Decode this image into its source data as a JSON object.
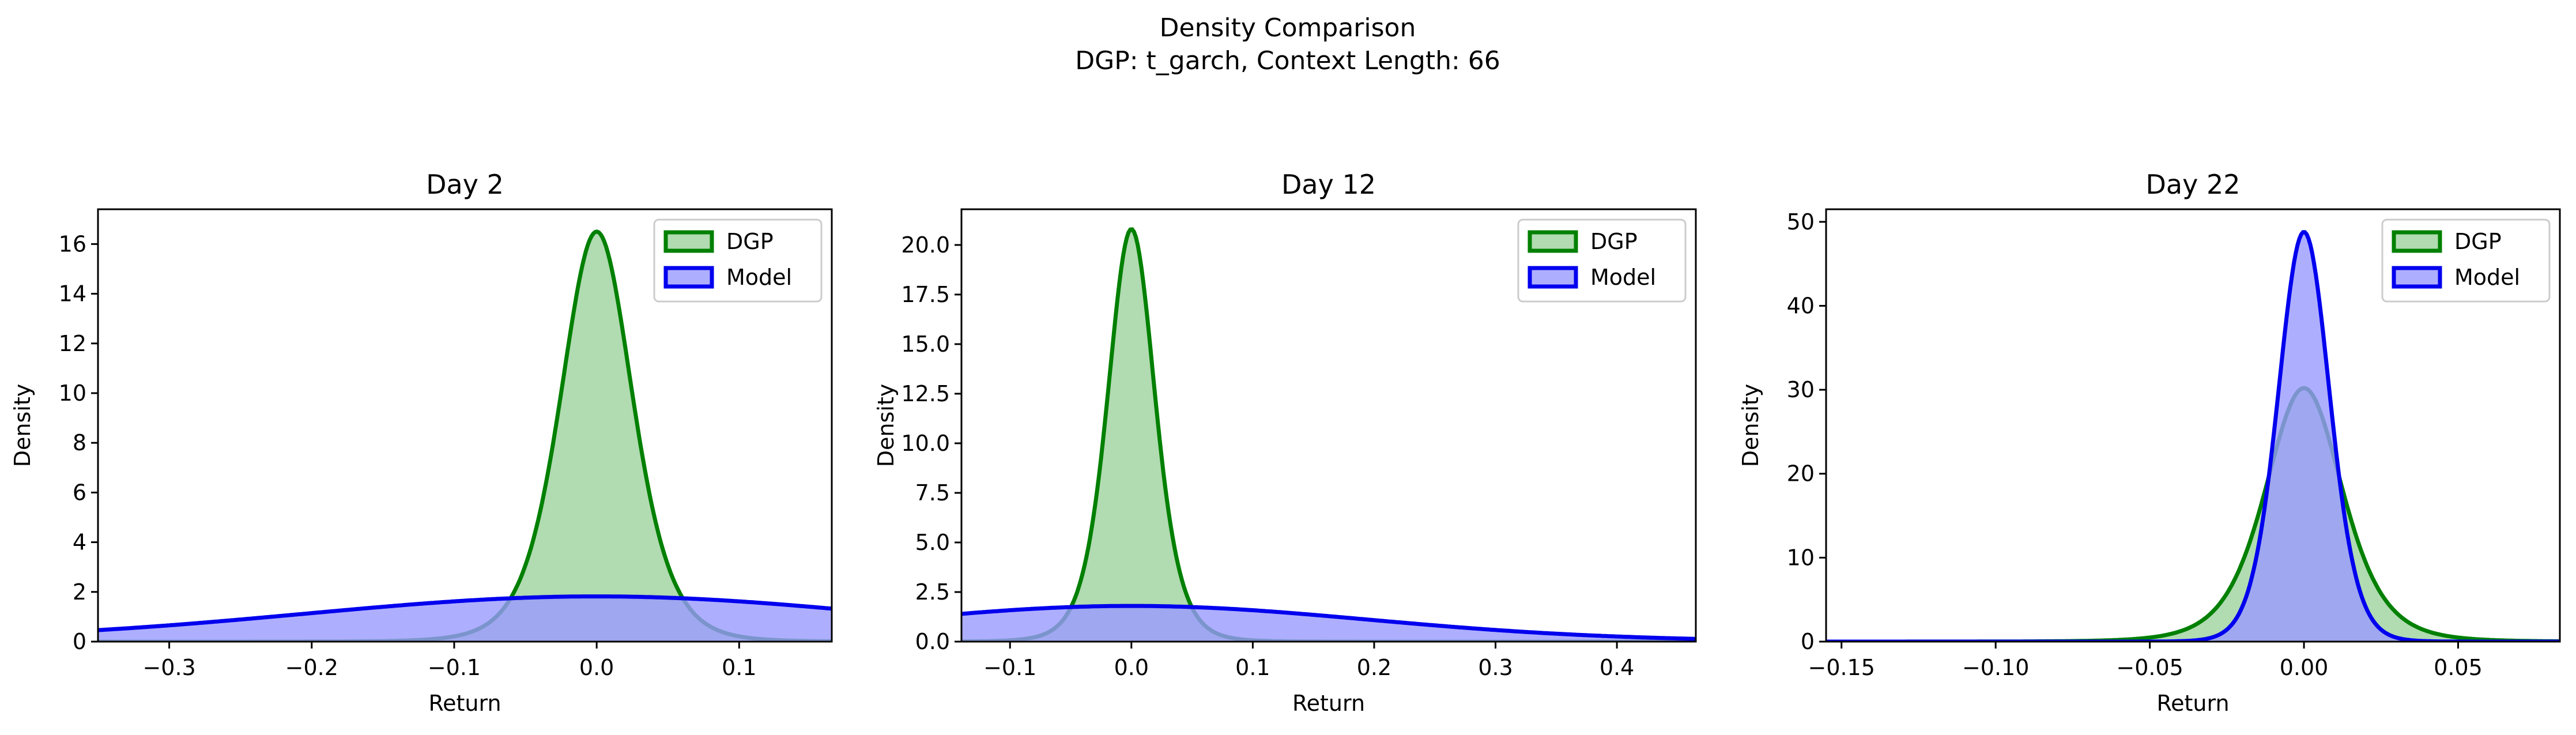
{
  "figure": {
    "title_line1": "Density Comparison",
    "title_line2": "DGP: t_garch, Context Length: 66"
  },
  "colors": {
    "dgp_line": "#008000",
    "dgp_fill": "#90cc90",
    "model_line": "#0000ee",
    "model_fill": "#9a9aff"
  },
  "chart_data": [
    {
      "type": "area",
      "title": "Day 2",
      "xlabel": "Return",
      "ylabel": "Density",
      "xlim": [
        -0.35,
        0.165
      ],
      "ylim": [
        0,
        17.4
      ],
      "xticks": [
        -0.3,
        -0.2,
        -0.1,
        0.0,
        0.1
      ],
      "xtick_labels": [
        "−0.3",
        "−0.2",
        "−0.1",
        "0.0",
        "0.1"
      ],
      "yticks": [
        0,
        2,
        4,
        6,
        8,
        10,
        12,
        14,
        16
      ],
      "ytick_labels": [
        "0",
        "2",
        "4",
        "6",
        "8",
        "10",
        "12",
        "14",
        "16"
      ],
      "legend_position": "top-right",
      "series": [
        {
          "name": "DGP",
          "peak_x": 0.0,
          "peak_y": 16.5,
          "spread": 0.026,
          "shape": 6
        },
        {
          "name": "Model",
          "peak_x": 0.0,
          "peak_y": 1.82,
          "spread": 0.21,
          "shape": 30
        }
      ]
    },
    {
      "type": "area",
      "title": "Day 12",
      "xlabel": "Return",
      "ylabel": "Density",
      "xlim": [
        -0.14,
        0.465
      ],
      "ylim": [
        0,
        21.8
      ],
      "xticks": [
        -0.1,
        0.0,
        0.1,
        0.2,
        0.3,
        0.4
      ],
      "xtick_labels": [
        "−0.1",
        "0.0",
        "0.1",
        "0.2",
        "0.3",
        "0.4"
      ],
      "yticks": [
        0,
        2.5,
        5,
        7.5,
        10,
        12.5,
        15,
        17.5,
        20
      ],
      "ytick_labels": [
        "0.0",
        "2.5",
        "5.0",
        "7.5",
        "10.0",
        "12.5",
        "15.0",
        "17.5",
        "20.0"
      ],
      "legend_position": "top-right",
      "series": [
        {
          "name": "DGP",
          "peak_x": 0.0,
          "peak_y": 20.8,
          "spread": 0.02,
          "shape": 6
        },
        {
          "name": "Model",
          "peak_x": 0.0,
          "peak_y": 1.8,
          "spread": 0.2,
          "shape": 30
        }
      ]
    },
    {
      "type": "area",
      "title": "Day 22",
      "xlabel": "Return",
      "ylabel": "Density",
      "xlim": [
        -0.155,
        0.083
      ],
      "ylim": [
        0,
        51.5
      ],
      "xticks": [
        -0.15,
        -0.1,
        -0.05,
        0.0,
        0.05
      ],
      "xtick_labels": [
        "−0.15",
        "−0.10",
        "−0.05",
        "0.00",
        "0.05"
      ],
      "yticks": [
        0,
        10,
        20,
        30,
        40,
        50
      ],
      "ytick_labels": [
        "0",
        "10",
        "20",
        "30",
        "40",
        "50"
      ],
      "legend_position": "top-right",
      "series": [
        {
          "name": "DGP",
          "peak_x": 0.0,
          "peak_y": 30.2,
          "spread": 0.013,
          "shape": 5
        },
        {
          "name": "Model",
          "peak_x": 0.0,
          "peak_y": 48.8,
          "spread": 0.0085,
          "shape": 12
        }
      ]
    }
  ]
}
